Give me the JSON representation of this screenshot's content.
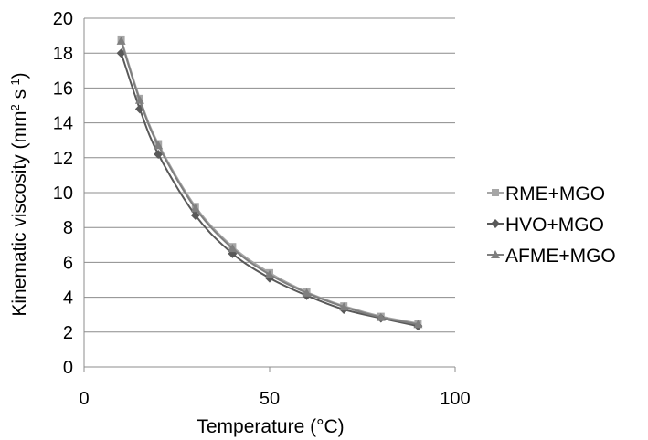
{
  "chart_data": {
    "type": "line",
    "xlabel": "Temperature (°C)",
    "ylabel": {
      "main": "Kinematic  viscosity (mm",
      "sup1": "2",
      "mid": " s",
      "sup2": "-1",
      "end": ")"
    },
    "xlim": [
      0,
      100
    ],
    "ylim": [
      0,
      20
    ],
    "x_ticks": [
      0,
      50,
      100
    ],
    "y_ticks": [
      0,
      2,
      4,
      6,
      8,
      10,
      12,
      14,
      16,
      18,
      20
    ],
    "grid": "horizontal",
    "legend_position": "right",
    "x": [
      10,
      15,
      20,
      30,
      40,
      50,
      60,
      70,
      80,
      90
    ],
    "series": [
      {
        "name": "RME+MGO",
        "marker": "square",
        "color": "#a6a6a6",
        "values": [
          18.8,
          15.4,
          12.8,
          9.2,
          6.9,
          5.4,
          4.3,
          3.5,
          2.9,
          2.5
        ]
      },
      {
        "name": "HVO+MGO",
        "marker": "diamond",
        "color": "#595959",
        "values": [
          18.0,
          14.8,
          12.2,
          8.7,
          6.5,
          5.1,
          4.1,
          3.3,
          2.8,
          2.35
        ]
      },
      {
        "name": "AFME+MGO",
        "marker": "triangle",
        "color": "#7f7f7f",
        "values": [
          18.7,
          15.3,
          12.7,
          9.1,
          6.8,
          5.3,
          4.25,
          3.45,
          2.85,
          2.45
        ]
      }
    ]
  }
}
